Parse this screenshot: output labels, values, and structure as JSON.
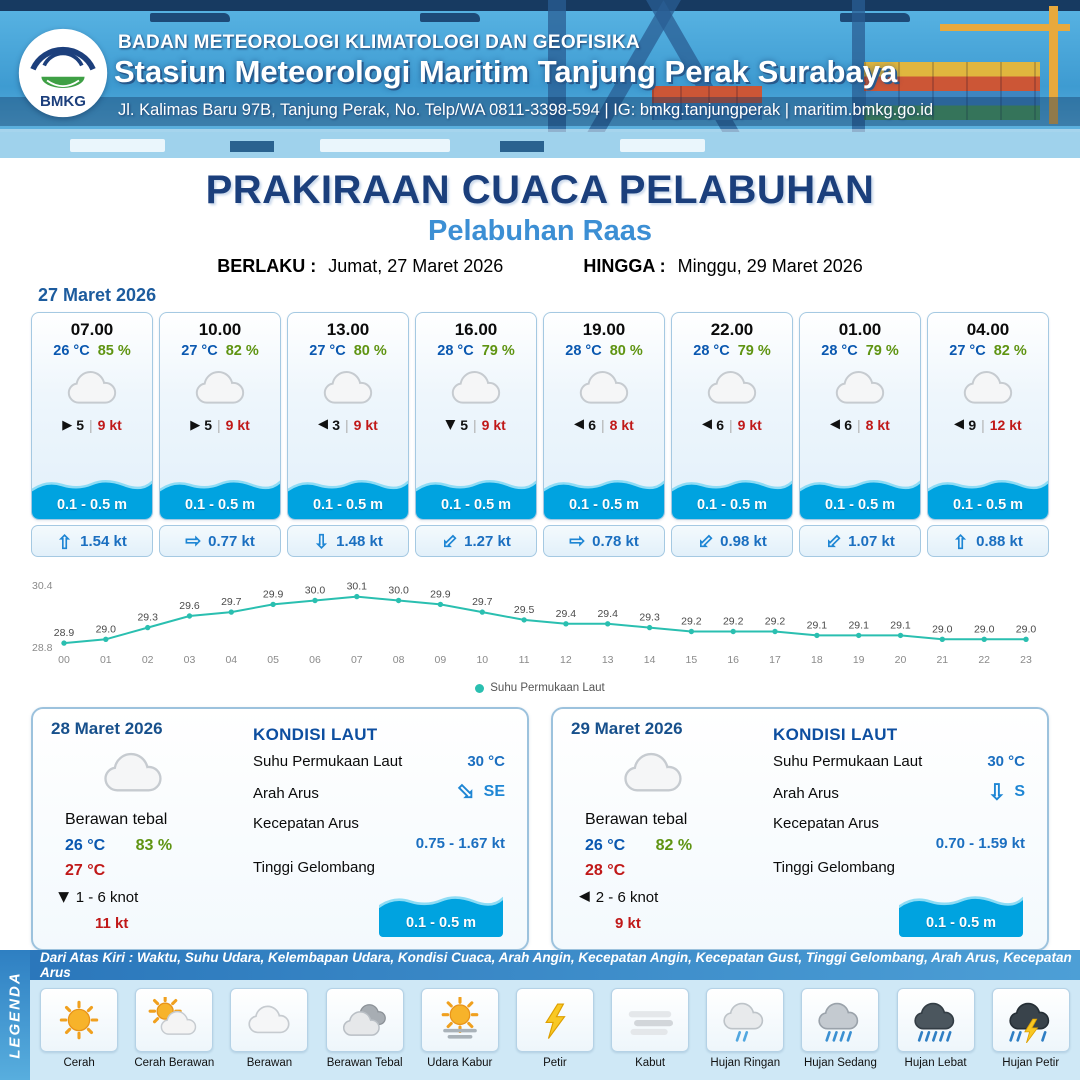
{
  "header": {
    "logo_text": "BMKG",
    "org": "BADAN METEOROLOGI KLIMATOLOGI DAN GEOFISIKA",
    "station": "Stasiun Meteorologi Maritim Tanjung Perak Surabaya",
    "contact": "Jl. Kalimas Baru 97B, Tanjung Perak, No. Telp/WA 0811-3398-594 | IG: bmkg.tanjungperak | maritim.bmkg.go.id"
  },
  "title": "PRAKIRAAN CUACA PELABUHAN",
  "subtitle": "Pelabuhan Raas",
  "validity": {
    "berlaku_label": "BERLAKU :",
    "berlaku_value": "Jumat, 27 Maret 2026",
    "hingga_label": "HINGGA :",
    "hingga_value": "Minggu, 29 Maret 2026"
  },
  "forecast_date": "27 Maret 2026",
  "cards": [
    {
      "time": "07.00",
      "temp": "26 °C",
      "rh": "85 %",
      "weather": "cloud",
      "wind_dir": "E",
      "wind_speed": "5",
      "gust": "9 kt",
      "wave": "0.1 - 0.5 m",
      "current_dir": "N",
      "current": "1.54 kt"
    },
    {
      "time": "10.00",
      "temp": "27 °C",
      "rh": "82 %",
      "weather": "cloud",
      "wind_dir": "E",
      "wind_speed": "5",
      "gust": "9 kt",
      "wave": "0.1 - 0.5 m",
      "current_dir": "E",
      "current": "0.77 kt"
    },
    {
      "time": "13.00",
      "temp": "27 °C",
      "rh": "80 %",
      "weather": "cloud",
      "wind_dir": "W",
      "wind_speed": "3",
      "gust": "9 kt",
      "wave": "0.1 - 0.5 m",
      "current_dir": "S",
      "current": "1.48 kt"
    },
    {
      "time": "16.00",
      "temp": "28 °C",
      "rh": "79 %",
      "weather": "cloud",
      "wind_dir": "S",
      "wind_speed": "5",
      "gust": "9 kt",
      "wave": "0.1 - 0.5 m",
      "current_dir": "SW",
      "current": "1.27 kt"
    },
    {
      "time": "19.00",
      "temp": "28 °C",
      "rh": "80 %",
      "weather": "cloud",
      "wind_dir": "W",
      "wind_speed": "6",
      "gust": "8 kt",
      "wave": "0.1 - 0.5 m",
      "current_dir": "E",
      "current": "0.78 kt"
    },
    {
      "time": "22.00",
      "temp": "28 °C",
      "rh": "79 %",
      "weather": "cloud",
      "wind_dir": "W",
      "wind_speed": "6",
      "gust": "9 kt",
      "wave": "0.1 - 0.5 m",
      "current_dir": "SW",
      "current": "0.98 kt"
    },
    {
      "time": "01.00",
      "temp": "28 °C",
      "rh": "79 %",
      "weather": "cloud",
      "wind_dir": "W",
      "wind_speed": "6",
      "gust": "8 kt",
      "wave": "0.1 - 0.5 m",
      "current_dir": "SW",
      "current": "1.07 kt"
    },
    {
      "time": "04.00",
      "temp": "27 °C",
      "rh": "82 %",
      "weather": "cloud",
      "wind_dir": "W",
      "wind_speed": "9",
      "gust": "12 kt",
      "wave": "0.1 - 0.5 m",
      "current_dir": "N",
      "current": "0.88 kt"
    }
  ],
  "chart_data": {
    "type": "line",
    "series_name": "Suhu Permukaan Laut",
    "x": [
      "00",
      "01",
      "02",
      "03",
      "04",
      "05",
      "06",
      "07",
      "08",
      "09",
      "10",
      "11",
      "12",
      "13",
      "14",
      "15",
      "16",
      "17",
      "18",
      "19",
      "20",
      "21",
      "22",
      "23"
    ],
    "values": [
      28.9,
      29.0,
      29.3,
      29.6,
      29.7,
      29.9,
      30.0,
      30.1,
      30.0,
      29.9,
      29.7,
      29.5,
      29.4,
      29.4,
      29.3,
      29.2,
      29.2,
      29.2,
      29.1,
      29.1,
      29.1,
      29.0,
      29.0,
      29.0
    ],
    "ylim": [
      28.8,
      30.4
    ],
    "line_color": "#2abfb0",
    "legend_position": "bottom",
    "grid": false
  },
  "daily_labels": {
    "kondisi_laut": "KONDISI LAUT",
    "sst": "Suhu Permukaan Laut",
    "arah_arus": "Arah Arus",
    "kecepatan_arus": "Kecepatan Arus",
    "tinggi_gelombang": "Tinggi Gelombang"
  },
  "daily": [
    {
      "date": "28 Maret 2026",
      "weather": "cloud",
      "condition": "Berawan tebal",
      "temp_min": "26 °C",
      "rh": "83 %",
      "temp_max": "27 °C",
      "wind_dir": "S",
      "wind_range": "1 - 6 knot",
      "gust": "11 kt",
      "sst": "30 °C",
      "current_dir": "SE",
      "current_speed": "0.75 - 1.67 kt",
      "wave": "0.1 - 0.5 m"
    },
    {
      "date": "29 Maret 2026",
      "weather": "cloud",
      "condition": "Berawan tebal",
      "temp_min": "26 °C",
      "rh": "82 %",
      "temp_max": "28 °C",
      "wind_dir": "W",
      "wind_range": "2 - 6 knot",
      "gust": "9 kt",
      "sst": "30 °C",
      "current_dir": "S",
      "current_speed": "0.70 - 1.59 kt",
      "wave": "0.1 - 0.5 m"
    }
  ],
  "legend": {
    "title": "LEGENDA",
    "note": "Dari Atas Kiri : Waktu, Suhu Udara, Kelembapan Udara, Kondisi Cuaca, Arah Angin, Kecepatan Angin, Kecepatan Gust, Tinggi Gelombang, Arah Arus, Kecepatan Arus",
    "items": [
      {
        "label": "Cerah",
        "icon": "sun"
      },
      {
        "label": "Cerah Berawan",
        "icon": "sun-cloud"
      },
      {
        "label": "Berawan",
        "icon": "cloud"
      },
      {
        "label": "Berawan Tebal",
        "icon": "cloud-dark"
      },
      {
        "label": "Udara Kabur",
        "icon": "haze"
      },
      {
        "label": "Petir",
        "icon": "lightning"
      },
      {
        "label": "Kabut",
        "icon": "fog"
      },
      {
        "label": "Hujan Ringan",
        "icon": "rain-light"
      },
      {
        "label": "Hujan Sedang",
        "icon": "rain-medium"
      },
      {
        "label": "Hujan Lebat",
        "icon": "rain-heavy"
      },
      {
        "label": "Hujan Petir",
        "icon": "storm"
      }
    ]
  },
  "colors": {
    "header_blue": "#3e9bd1",
    "title_navy": "#1b3f7c",
    "subtitle_blue": "#3c8fd4",
    "temp_blue": "#0a58b0",
    "humidity_green": "#5f9412",
    "gust_red": "#c01818",
    "wave_blue": "#00a3e0",
    "current_blue": "#1b6fc0",
    "chart_line": "#2abfb0",
    "legend_bar_blue": "#2b77bb"
  }
}
